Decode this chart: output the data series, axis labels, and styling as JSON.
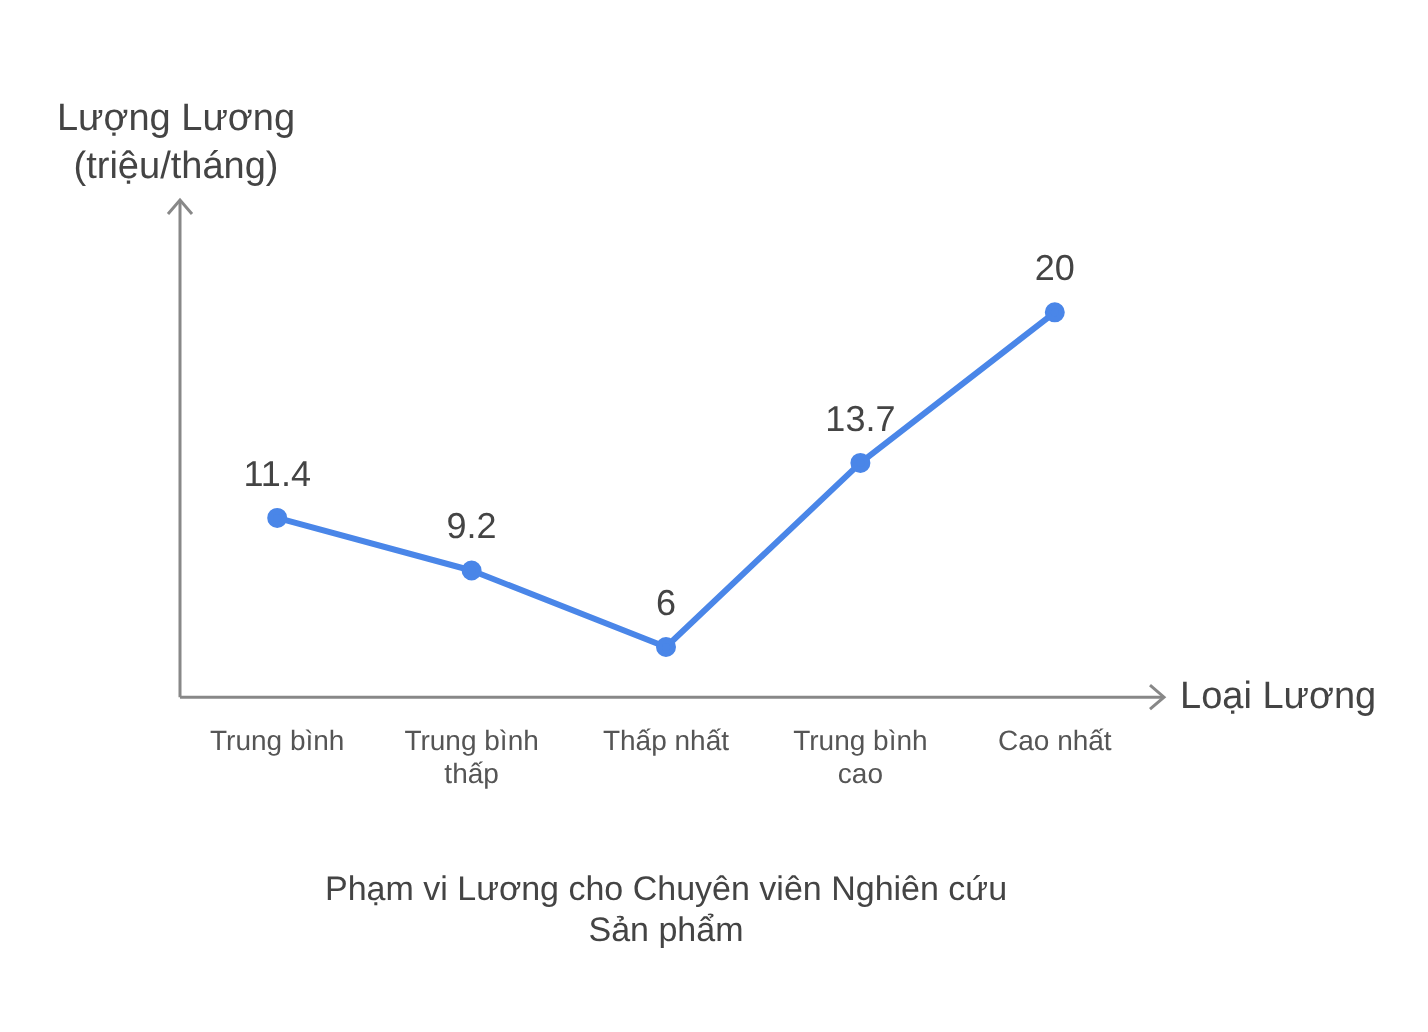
{
  "chart_data": {
    "type": "line",
    "title": "Phạm vi Lương cho Chuyên viên Nghiên cứu Sản phẩm",
    "xlabel": "Loại Lương",
    "ylabel": "Lượng Lương (triệu/tháng)",
    "categories": [
      "Trung bình",
      "Trung bình thấp",
      "Thấp nhất",
      "Trung bình cao",
      "Cao nhất"
    ],
    "series": [
      {
        "color": "#4a86e8",
        "values": [
          11.4,
          9.2,
          6,
          13.7,
          20
        ]
      }
    ],
    "ylim": [
      3.9,
      24.7
    ],
    "data_labels": true,
    "grid": false,
    "legend": false,
    "marker": "circle",
    "line_style": "solid"
  }
}
